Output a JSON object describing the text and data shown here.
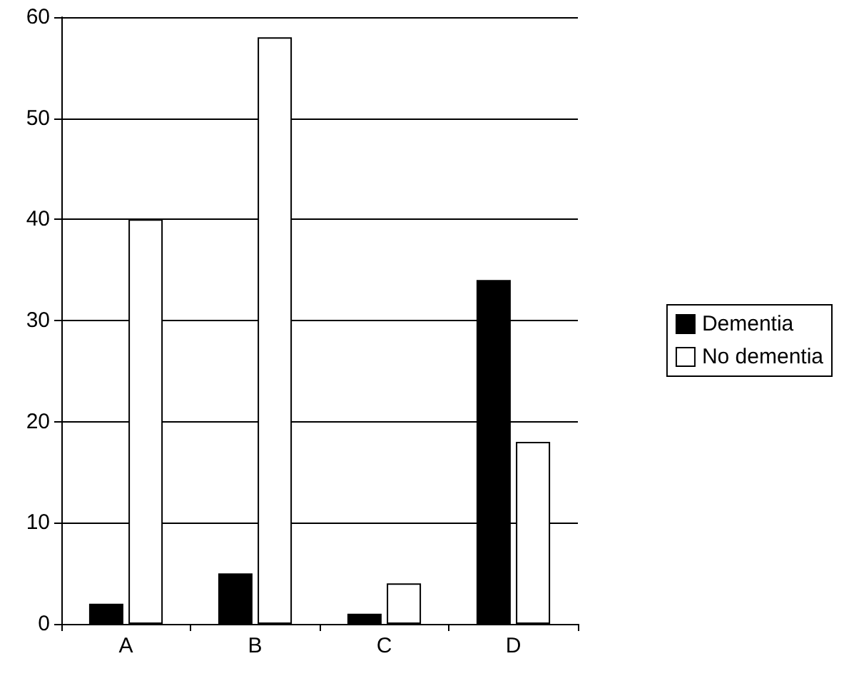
{
  "chart_data": {
    "type": "bar",
    "categories": [
      "A",
      "B",
      "C",
      "D"
    ],
    "series": [
      {
        "name": "Dementia",
        "color": "#000000",
        "values": [
          2,
          5,
          1,
          34
        ]
      },
      {
        "name": "No dementia",
        "color": "#ffffff",
        "values": [
          40,
          58,
          4,
          18
        ]
      }
    ],
    "ylim": [
      0,
      60
    ],
    "yticks": [
      0,
      10,
      20,
      30,
      40,
      50,
      60
    ],
    "grid": "y",
    "legend": "right"
  }
}
